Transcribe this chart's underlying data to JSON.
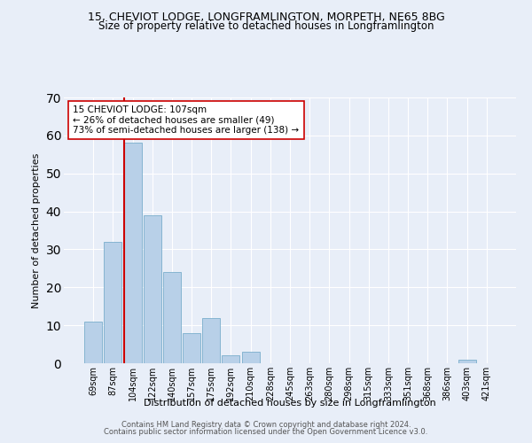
{
  "title_line1": "15, CHEVIOT LODGE, LONGFRAMLINGTON, MORPETH, NE65 8BG",
  "title_line2": "Size of property relative to detached houses in Longframlington",
  "xlabel": "Distribution of detached houses by size in Longframlington",
  "ylabel": "Number of detached properties",
  "categories": [
    "69sqm",
    "87sqm",
    "104sqm",
    "122sqm",
    "140sqm",
    "157sqm",
    "175sqm",
    "192sqm",
    "210sqm",
    "228sqm",
    "245sqm",
    "263sqm",
    "280sqm",
    "298sqm",
    "315sqm",
    "333sqm",
    "351sqm",
    "368sqm",
    "386sqm",
    "403sqm",
    "421sqm"
  ],
  "values": [
    11,
    32,
    58,
    39,
    24,
    8,
    12,
    2,
    3,
    0,
    0,
    0,
    0,
    0,
    0,
    0,
    0,
    0,
    0,
    1,
    0
  ],
  "bar_color": "#b8d0e8",
  "bar_edge_color": "#7aaecc",
  "highlight_bar_index": 2,
  "highlight_line_color": "#cc0000",
  "ylim": [
    0,
    70
  ],
  "yticks": [
    0,
    10,
    20,
    30,
    40,
    50,
    60,
    70
  ],
  "annotation_text": "15 CHEVIOT LODGE: 107sqm\n← 26% of detached houses are smaller (49)\n73% of semi-detached houses are larger (138) →",
  "annotation_box_color": "#ffffff",
  "annotation_box_edge": "#cc0000",
  "footer_line1": "Contains HM Land Registry data © Crown copyright and database right 2024.",
  "footer_line2": "Contains public sector information licensed under the Open Government Licence v3.0.",
  "background_color": "#e8eef8",
  "grid_color": "#ffffff",
  "title_fontsize": 9,
  "subtitle_fontsize": 8.5,
  "axis_label_fontsize": 8,
  "tick_fontsize": 7,
  "annotation_fontsize": 7.5,
  "footer_fontsize": 6.0
}
